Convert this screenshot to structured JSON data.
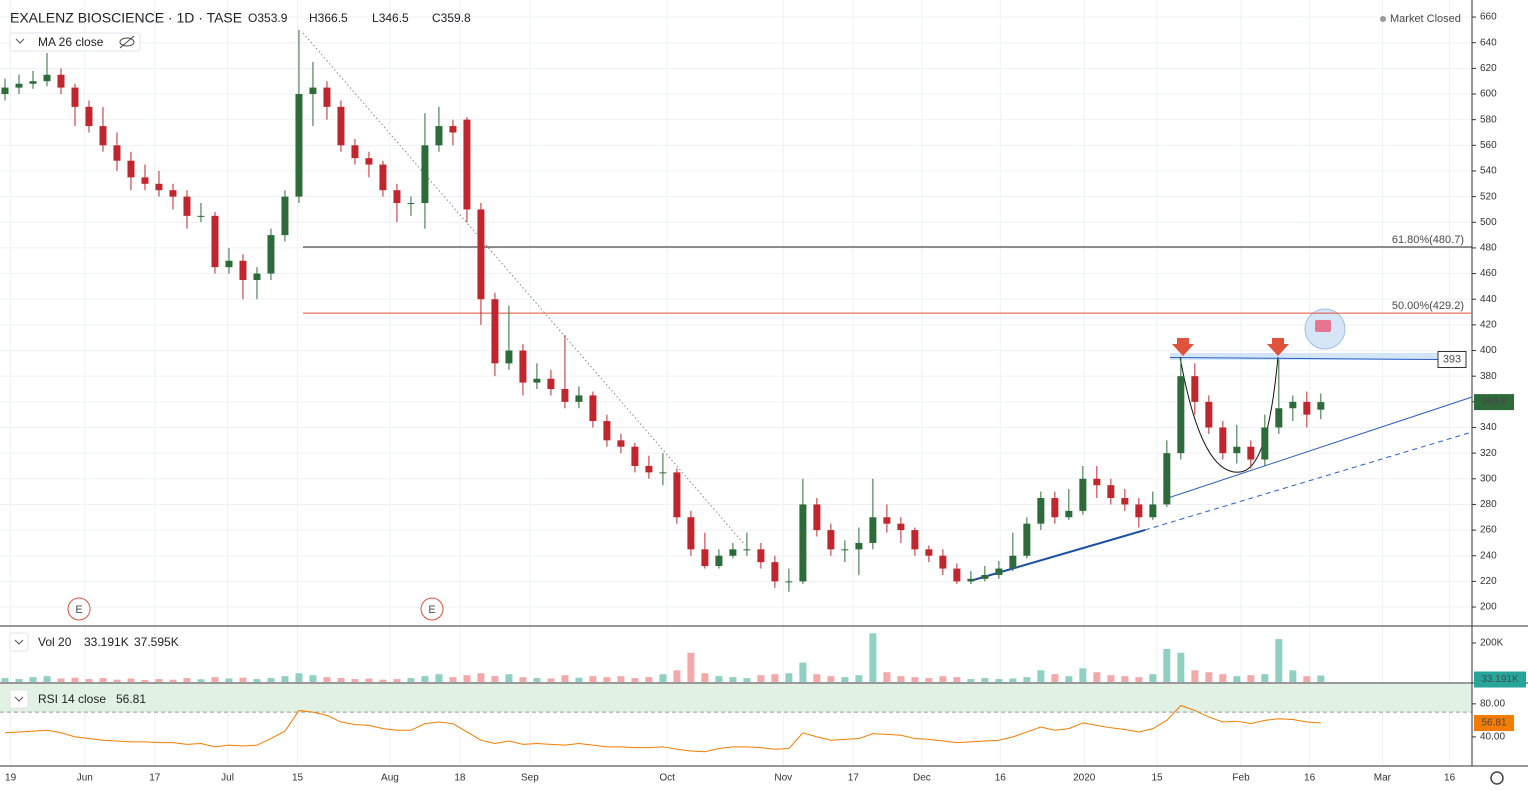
{
  "chart_data": {
    "type": "candlestick",
    "title": "EXALENZ BIOSCIENCE · 1D · TASE",
    "ohlc_legend": [
      {
        "key": "O",
        "value": 353.9
      },
      {
        "key": "H",
        "value": 366.5
      },
      {
        "key": "L",
        "value": 346.5
      },
      {
        "key": "C",
        "value": 359.8
      }
    ],
    "indicator": "MA 26 close",
    "status": "Market Closed",
    "up_color": "#2e6b3a",
    "down_color": "#c0262d",
    "ylim": [
      186,
      673.3
    ],
    "yticks": [
      200,
      220,
      240,
      260,
      280,
      300,
      320,
      340,
      360,
      380,
      400,
      420,
      440,
      460,
      480,
      500,
      520,
      540,
      560,
      580,
      600,
      620,
      640,
      660
    ],
    "xlim": [
      -0.357,
      104.8
    ],
    "xticks": [
      {
        "value": 0.4,
        "label": "19"
      },
      {
        "value": 5.7,
        "label": "Jun"
      },
      {
        "value": 10.7,
        "label": "17"
      },
      {
        "value": 15.9,
        "label": "Jul"
      },
      {
        "value": 20.9,
        "label": "15"
      },
      {
        "value": 27.5,
        "label": "Aug"
      },
      {
        "value": 32.5,
        "label": "18"
      },
      {
        "value": 37.5,
        "label": "Sep"
      },
      {
        "value": 47.3,
        "label": "Oct"
      },
      {
        "value": 55.6,
        "label": "Nov"
      },
      {
        "value": 60.6,
        "label": "17"
      },
      {
        "value": 65.5,
        "label": "Dec"
      },
      {
        "value": 71.1,
        "label": "16"
      },
      {
        "value": 77.1,
        "label": "2020"
      },
      {
        "value": 82.3,
        "label": "15"
      },
      {
        "value": 88.3,
        "label": "Feb"
      },
      {
        "value": 93.2,
        "label": "16"
      },
      {
        "value": 98.4,
        "label": "Mar"
      },
      {
        "value": 103.2,
        "label": "16"
      }
    ],
    "candles": [
      [
        600,
        612,
        595,
        605
      ],
      [
        605,
        615,
        600,
        608
      ],
      [
        608,
        618,
        604,
        610
      ],
      [
        610,
        632,
        606,
        615
      ],
      [
        615,
        620,
        600,
        605
      ],
      [
        605,
        608,
        575,
        590
      ],
      [
        590,
        595,
        570,
        575
      ],
      [
        575,
        590,
        555,
        560
      ],
      [
        560,
        570,
        540,
        548
      ],
      [
        548,
        555,
        525,
        535
      ],
      [
        535,
        545,
        525,
        530
      ],
      [
        530,
        540,
        520,
        525
      ],
      [
        525,
        530,
        510,
        520
      ],
      [
        520,
        525,
        495,
        505
      ],
      [
        505,
        515,
        500,
        505
      ],
      [
        505,
        508,
        460,
        465
      ],
      [
        465,
        480,
        460,
        470
      ],
      [
        470,
        475,
        440,
        455
      ],
      [
        455,
        465,
        440,
        460
      ],
      [
        460,
        495,
        455,
        490
      ],
      [
        490,
        525,
        485,
        520
      ],
      [
        520,
        650,
        515,
        600
      ],
      [
        600,
        625,
        575,
        605
      ],
      [
        605,
        610,
        580,
        590
      ],
      [
        590,
        595,
        555,
        560
      ],
      [
        560,
        565,
        545,
        550
      ],
      [
        550,
        555,
        535,
        545
      ],
      [
        545,
        548,
        520,
        525
      ],
      [
        525,
        530,
        500,
        515
      ],
      [
        515,
        520,
        505,
        515
      ],
      [
        515,
        585,
        495,
        560
      ],
      [
        560,
        590,
        555,
        575
      ],
      [
        575,
        580,
        560,
        570
      ],
      [
        580,
        582,
        500,
        510
      ],
      [
        510,
        515,
        420,
        440
      ],
      [
        440,
        445,
        380,
        390
      ],
      [
        390,
        435,
        385,
        400
      ],
      [
        400,
        405,
        365,
        375
      ],
      [
        375,
        390,
        370,
        378
      ],
      [
        378,
        385,
        365,
        370
      ],
      [
        370,
        412,
        355,
        360
      ],
      [
        360,
        372,
        355,
        365
      ],
      [
        365,
        368,
        340,
        345
      ],
      [
        345,
        350,
        325,
        330
      ],
      [
        330,
        335,
        320,
        325
      ],
      [
        325,
        328,
        305,
        310
      ],
      [
        310,
        318,
        300,
        305
      ],
      [
        305,
        320,
        295,
        305
      ],
      [
        305,
        308,
        265,
        270
      ],
      [
        270,
        275,
        240,
        245
      ],
      [
        245,
        258,
        230,
        232
      ],
      [
        232,
        245,
        230,
        240
      ],
      [
        240,
        250,
        238,
        245
      ],
      [
        245,
        258,
        240,
        245
      ],
      [
        245,
        250,
        230,
        235
      ],
      [
        235,
        240,
        215,
        220
      ],
      [
        220,
        230,
        212,
        220
      ],
      [
        220,
        300,
        218,
        280
      ],
      [
        280,
        285,
        255,
        260
      ],
      [
        260,
        265,
        240,
        245
      ],
      [
        245,
        252,
        235,
        245
      ],
      [
        245,
        262,
        225,
        250
      ],
      [
        250,
        300,
        245,
        270
      ],
      [
        270,
        280,
        258,
        265
      ],
      [
        265,
        270,
        250,
        260
      ],
      [
        260,
        262,
        240,
        245
      ],
      [
        245,
        248,
        235,
        240
      ],
      [
        240,
        245,
        225,
        230
      ],
      [
        230,
        234,
        218,
        220
      ],
      [
        220,
        228,
        218,
        222
      ],
      [
        222,
        232,
        220,
        225
      ],
      [
        225,
        236,
        222,
        230
      ],
      [
        230,
        258,
        228,
        240
      ],
      [
        240,
        270,
        238,
        265
      ],
      [
        265,
        290,
        260,
        285
      ],
      [
        285,
        290,
        265,
        270
      ],
      [
        270,
        292,
        268,
        275
      ],
      [
        275,
        310,
        272,
        300
      ],
      [
        300,
        310,
        285,
        295
      ],
      [
        295,
        300,
        280,
        285
      ],
      [
        285,
        292,
        275,
        280
      ],
      [
        280,
        285,
        262,
        270
      ],
      [
        270,
        290,
        268,
        280
      ],
      [
        280,
        330,
        278,
        320
      ],
      [
        320,
        395,
        315,
        380
      ],
      [
        380,
        390,
        350,
        360
      ],
      [
        360,
        365,
        335,
        340
      ],
      [
        340,
        345,
        315,
        320
      ],
      [
        320,
        342,
        312,
        325
      ],
      [
        325,
        330,
        308,
        315
      ],
      [
        315,
        350,
        310,
        340
      ],
      [
        340,
        393,
        335,
        355
      ],
      [
        355,
        365,
        345,
        360
      ],
      [
        360,
        368,
        340,
        350
      ],
      [
        353.9,
        366.5,
        346.5,
        359.8
      ]
    ],
    "fib_levels": [
      {
        "label": "61.80%(480.7)",
        "value": 480.7,
        "color": "#222222"
      },
      {
        "label": "50.00%(429.2)",
        "value": 429.2,
        "color": "#e0523c"
      }
    ],
    "resistance": 393,
    "earnings_marker": "E",
    "volume": {
      "legend": "Vol 20",
      "value_label": "33.191K",
      "ma_label": "37.595K",
      "up_color": "#8fd0c3",
      "down_color": "#f2a9a9",
      "ylim": [
        0,
        282000
      ],
      "yticks": [
        {
          "value": 200000,
          "label": "200K"
        }
      ],
      "values": [
        20000,
        15000,
        25000,
        30000,
        18000,
        22000,
        15000,
        20000,
        12000,
        18000,
        10000,
        15000,
        12000,
        20000,
        14000,
        25000,
        18000,
        22000,
        15000,
        20000,
        30000,
        45000,
        35000,
        25000,
        20000,
        15000,
        18000,
        12000,
        15000,
        20000,
        30000,
        40000,
        25000,
        35000,
        45000,
        30000,
        40000,
        25000,
        20000,
        18000,
        35000,
        22000,
        30000,
        25000,
        30000,
        20000,
        25000,
        40000,
        60000,
        150000,
        45000,
        30000,
        25000,
        20000,
        35000,
        40000,
        45000,
        100000,
        40000,
        30000,
        25000,
        35000,
        250000,
        50000,
        30000,
        25000,
        20000,
        30000,
        25000,
        15000,
        20000,
        15000,
        18000,
        25000,
        60000,
        40000,
        30000,
        70000,
        50000,
        35000,
        30000,
        25000,
        40000,
        170000,
        150000,
        60000,
        50000,
        40000,
        30000,
        35000,
        40000,
        220000,
        60000,
        30000,
        33191
      ]
    },
    "rsi": {
      "legend": "RSI 14 close",
      "color": "#f57c00",
      "band_color": "#d9efdf",
      "overbought": 70,
      "ylim": [
        6,
        104
      ],
      "yticks": [
        {
          "value": 40,
          "label": "40.00"
        },
        {
          "value": 80,
          "label": "80.00"
        }
      ],
      "values": [
        45,
        46,
        47,
        48,
        45,
        40,
        38,
        36,
        35,
        34,
        34,
        33,
        33,
        31,
        32,
        28,
        30,
        29,
        30,
        38,
        47,
        72,
        70,
        66,
        58,
        55,
        54,
        50,
        48,
        48,
        56,
        58,
        56,
        46,
        36,
        32,
        35,
        31,
        32,
        31,
        30,
        32,
        30,
        28,
        28,
        27,
        27,
        28,
        25,
        23,
        22,
        26,
        28,
        28,
        27,
        25,
        26,
        45,
        40,
        36,
        37,
        38,
        44,
        43,
        42,
        38,
        37,
        35,
        33,
        34,
        35,
        36,
        40,
        46,
        52,
        48,
        50,
        57,
        54,
        51,
        49,
        46,
        50,
        60,
        78,
        72,
        64,
        58,
        59,
        56,
        60,
        62,
        61,
        58,
        56.81
      ]
    }
  }
}
